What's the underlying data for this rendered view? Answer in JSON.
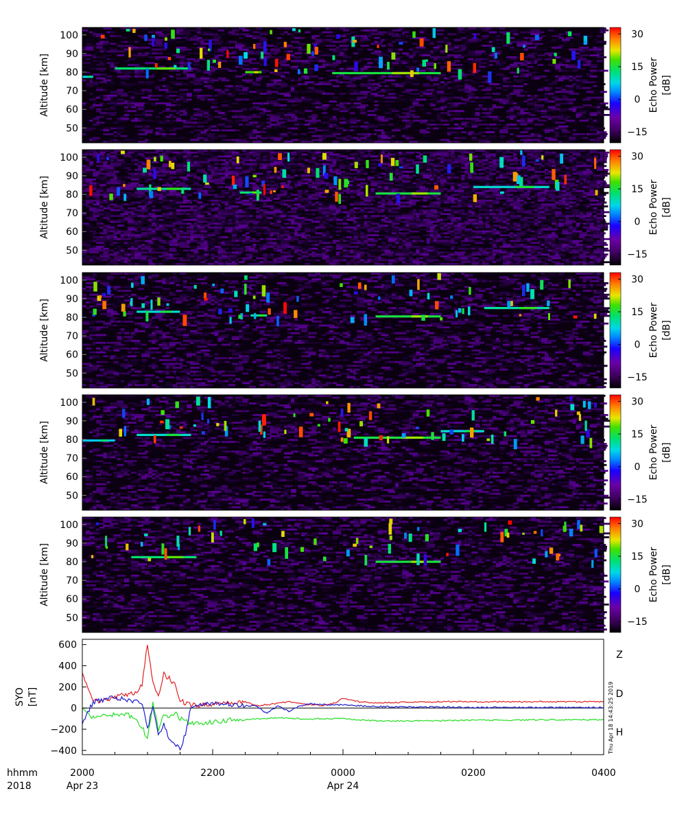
{
  "colors": {
    "Z": "#e02020",
    "D": "#22dd22",
    "H": "#1a1acc",
    "colormap": [
      "#000000",
      "#5a0090",
      "#1a00ff",
      "#00a0ff",
      "#00e8c8",
      "#20e020",
      "#e0e000",
      "#ff8000",
      "#ff0000"
    ]
  },
  "time_axis": {
    "tick_labels": [
      "2000",
      "2200",
      "0000",
      "0200",
      "0400"
    ],
    "date_labels": [
      "Apr 23",
      "Apr 24"
    ],
    "left_labels": [
      "hhmm",
      "2018"
    ]
  },
  "stamp": "Thu Apr 18 14:43:25 2019",
  "chart_data": [
    {
      "type": "heatmap",
      "panel": 1,
      "ylabel": "Altitude [km]",
      "yticks": [
        50,
        60,
        70,
        80,
        90,
        100
      ],
      "ylim": [
        42,
        104
      ],
      "xlim": [
        "2018-04-23 20:00",
        "2018-04-24 04:00"
      ],
      "colorbar_label": "Echo Power [dB]",
      "colorbar_ticks": [
        -15,
        0,
        15,
        30
      ],
      "colorbar_range": [
        -20,
        33
      ],
      "layers": [
        {
          "start": "20:00",
          "end": "20:10",
          "alt": 77.5,
          "power": 5
        },
        {
          "start": "20:30",
          "end": "21:40",
          "alt": 82.0,
          "power": 10
        },
        {
          "start": "22:30",
          "end": "22:45",
          "alt": 80.0,
          "power": 15
        },
        {
          "start": "23:50",
          "end": "01:30",
          "alt": 79.5,
          "power": 12
        }
      ]
    },
    {
      "type": "heatmap",
      "panel": 2,
      "ylabel": "Altitude [km]",
      "yticks": [
        50,
        60,
        70,
        80,
        90,
        100
      ],
      "ylim": [
        42,
        104
      ],
      "xlim": [
        "2018-04-24 20:00",
        "2018-04-25 04:00"
      ],
      "colorbar_label": "Echo Power [dB]",
      "colorbar_ticks": [
        -15,
        0,
        15,
        30
      ],
      "colorbar_range": [
        -20,
        33
      ],
      "layers": [
        {
          "start": "20:50",
          "end": "21:40",
          "alt": 83.0,
          "power": 8
        },
        {
          "start": "22:25",
          "end": "22:45",
          "alt": 81.0,
          "power": 10
        },
        {
          "start": "00:30",
          "end": "01:30",
          "alt": 80.5,
          "power": 12
        },
        {
          "start": "02:00",
          "end": "03:10",
          "alt": 84.0,
          "power": 6
        }
      ]
    },
    {
      "type": "heatmap",
      "panel": 3,
      "ylabel": "Altitude [km]",
      "yticks": [
        50,
        60,
        70,
        80,
        90,
        100
      ],
      "ylim": [
        42,
        104
      ],
      "xlim": [
        "2018-04-25 20:00",
        "2018-04-26 04:00"
      ],
      "colorbar_label": "Echo Power [dB]",
      "colorbar_ticks": [
        -15,
        0,
        15,
        30
      ],
      "colorbar_range": [
        -20,
        33
      ],
      "layers": [
        {
          "start": "20:50",
          "end": "21:30",
          "alt": 83.0,
          "power": 6
        },
        {
          "start": "22:35",
          "end": "22:50",
          "alt": 81.0,
          "power": 8
        },
        {
          "start": "00:30",
          "end": "01:30",
          "alt": 80.5,
          "power": 12
        },
        {
          "start": "02:10",
          "end": "03:10",
          "alt": 85.0,
          "power": 8
        }
      ]
    },
    {
      "type": "heatmap",
      "panel": 4,
      "ylabel": "Altitude [km]",
      "yticks": [
        50,
        60,
        70,
        80,
        90,
        100
      ],
      "ylim": [
        42,
        104
      ],
      "xlim": [
        "2018-04-26 20:00",
        "2018-04-27 04:00"
      ],
      "colorbar_label": "Echo Power [dB]",
      "colorbar_ticks": [
        -15,
        0,
        15,
        30
      ],
      "colorbar_range": [
        -20,
        33
      ],
      "layers": [
        {
          "start": "20:00",
          "end": "20:30",
          "alt": 79.5,
          "power": 4
        },
        {
          "start": "20:50",
          "end": "21:40",
          "alt": 82.5,
          "power": 6
        },
        {
          "start": "00:10",
          "end": "01:30",
          "alt": 81.0,
          "power": 12
        },
        {
          "start": "01:30",
          "end": "02:10",
          "alt": 84.5,
          "power": 6
        }
      ]
    },
    {
      "type": "heatmap",
      "panel": 5,
      "ylabel": "Altitude [km]",
      "yticks": [
        50,
        60,
        70,
        80,
        90,
        100
      ],
      "ylim": [
        42,
        104
      ],
      "xlim": [
        "2018-04-27 20:00",
        "2018-04-28 04:00"
      ],
      "colorbar_label": "Echo Power [dB]",
      "colorbar_ticks": [
        -15,
        0,
        15,
        30
      ],
      "colorbar_range": [
        -20,
        33
      ],
      "layers": [
        {
          "start": "20:45",
          "end": "21:45",
          "alt": 82.5,
          "power": 10
        },
        {
          "start": "00:30",
          "end": "01:30",
          "alt": 80.0,
          "power": 12
        }
      ]
    },
    {
      "type": "line",
      "panel": 6,
      "ylabel": "SYO [nT]",
      "yticks": [
        -400,
        -200,
        0,
        200,
        400,
        600
      ],
      "ylim": [
        -440,
        650
      ],
      "xlim": [
        "2018-04-23 20:00",
        "2018-04-24 04:00"
      ],
      "x": [
        "20:00",
        "20:10",
        "20:20",
        "20:30",
        "20:40",
        "20:50",
        "20:55",
        "21:00",
        "21:05",
        "21:10",
        "21:15",
        "21:20",
        "21:25",
        "21:30",
        "21:35",
        "21:40",
        "21:50",
        "22:00",
        "22:10",
        "22:20",
        "22:30",
        "22:40",
        "22:50",
        "23:00",
        "23:10",
        "23:20",
        "23:30",
        "23:40",
        "23:50",
        "00:00",
        "00:15",
        "00:30",
        "01:00",
        "01:30",
        "02:00",
        "02:30",
        "03:00",
        "03:30",
        "04:00"
      ],
      "series": [
        {
          "name": "Z",
          "values": [
            320,
            60,
            80,
            100,
            130,
            140,
            230,
            600,
            250,
            120,
            320,
            280,
            220,
            80,
            40,
            30,
            25,
            40,
            50,
            45,
            60,
            20,
            30,
            45,
            60,
            45,
            30,
            25,
            40,
            90,
            60,
            50,
            55,
            60,
            60,
            60,
            60,
            60,
            60
          ]
        },
        {
          "name": "D",
          "values": [
            -20,
            -90,
            -80,
            -60,
            -50,
            -120,
            -170,
            -300,
            50,
            -200,
            -50,
            -80,
            -40,
            -100,
            -120,
            -150,
            -140,
            -130,
            -120,
            -110,
            -110,
            -100,
            -100,
            -90,
            -100,
            -100,
            -105,
            -100,
            -100,
            -100,
            -110,
            -120,
            -120,
            -120,
            -115,
            -115,
            -110,
            -110,
            -110
          ]
        },
        {
          "name": "H",
          "values": [
            -150,
            60,
            80,
            100,
            80,
            60,
            50,
            -200,
            20,
            -250,
            -150,
            -300,
            -350,
            -380,
            -250,
            10,
            30,
            35,
            40,
            30,
            25,
            20,
            -50,
            20,
            -30,
            20,
            40,
            35,
            30,
            30,
            20,
            15,
            10,
            10,
            5,
            5,
            5,
            5,
            5
          ]
        }
      ],
      "series_labels": [
        "Z",
        "D",
        "H"
      ]
    }
  ]
}
